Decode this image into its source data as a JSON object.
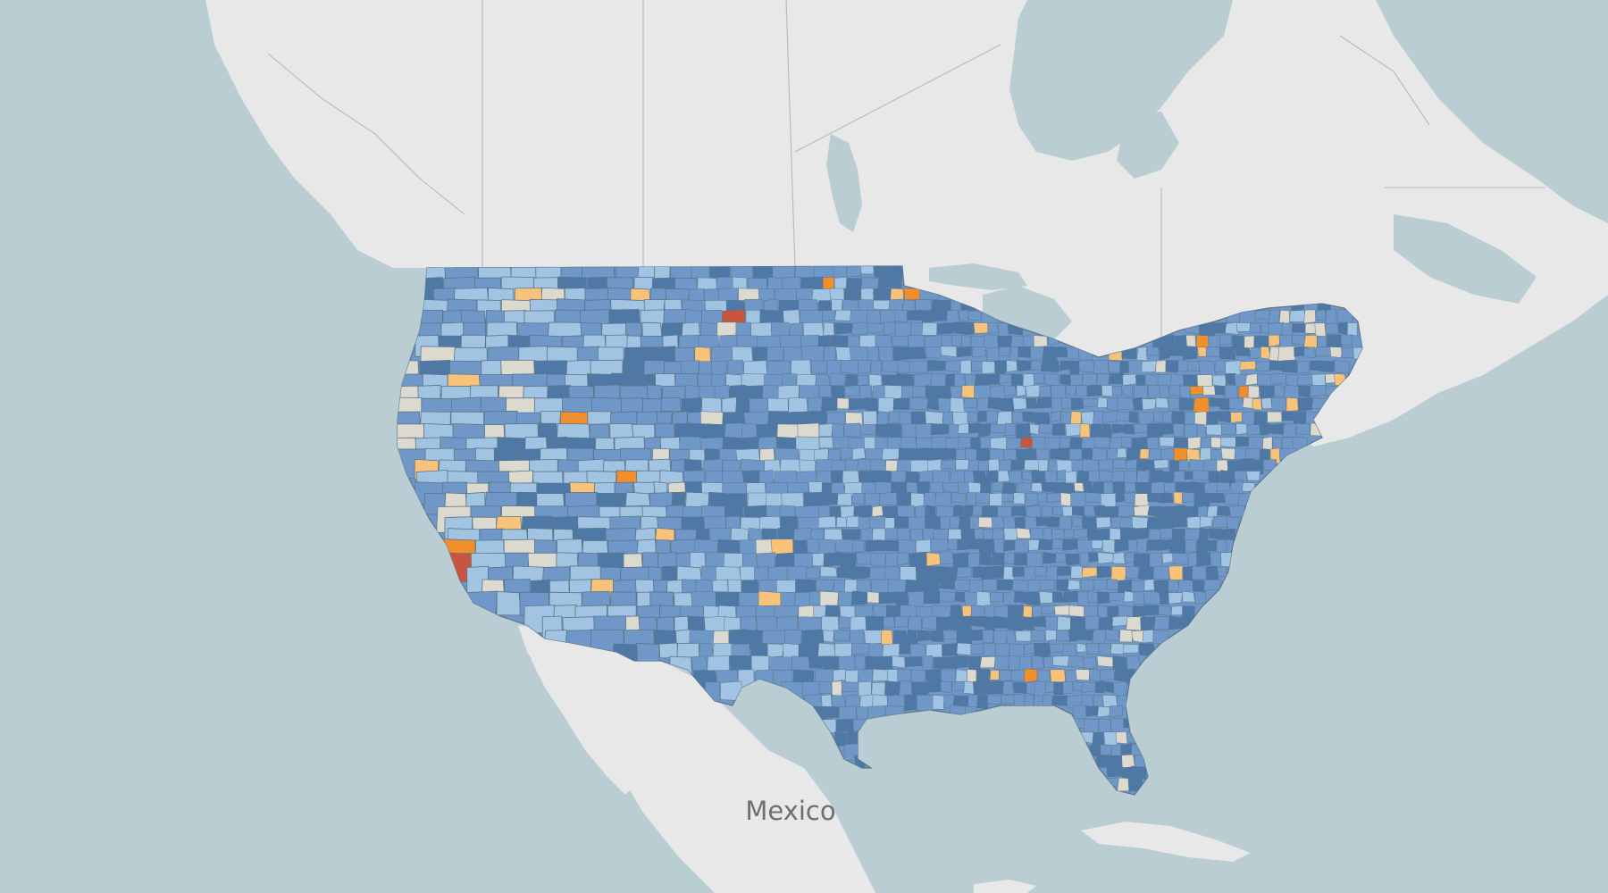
{
  "map": {
    "country_label": "Mexico",
    "colors": {
      "water": "#b9cdd3",
      "land": "#e8e8e8",
      "county_border": "#5e7487",
      "boundary": "#b8b8b8"
    },
    "color_scale": {
      "type": "diverging",
      "stops": [
        "#4e79a7",
        "#6f98c8",
        "#a0c4e2",
        "#dcd9cf",
        "#f7c27a",
        "#f28e2b",
        "#c8553d"
      ]
    }
  }
}
